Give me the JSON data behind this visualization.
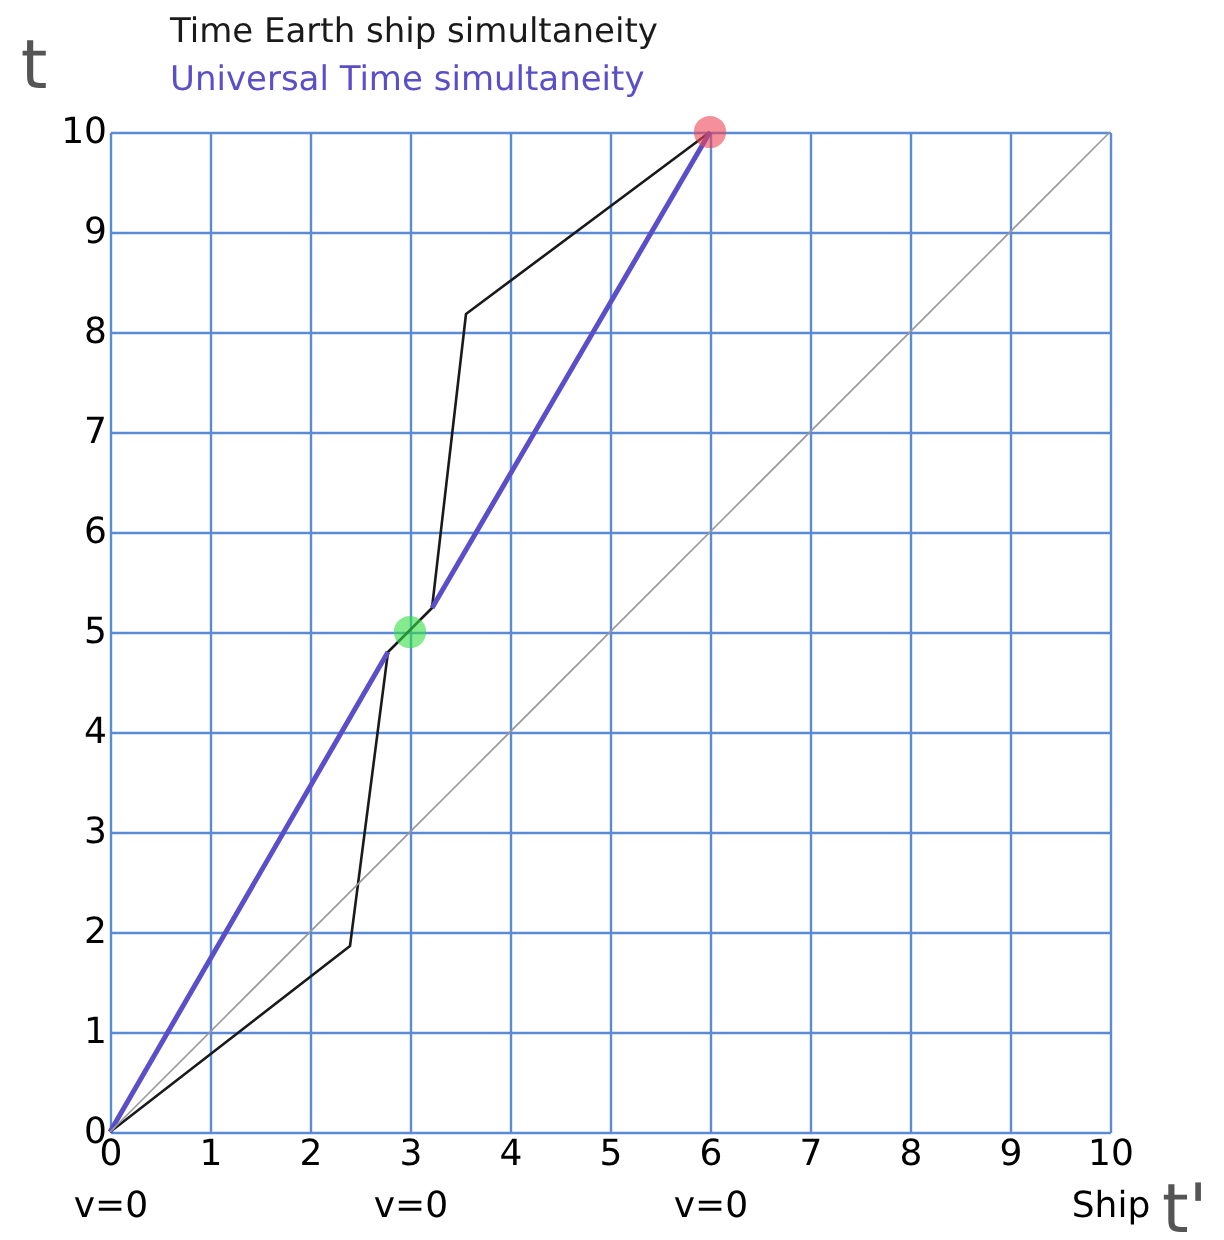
{
  "chart_data": {
    "type": "line",
    "xlabel": "t'",
    "ylabel": "t",
    "series": [
      {
        "name": "Time Earth ship simultaneity",
        "color": "#1a1a1a",
        "x": [
          0,
          2.4,
          2.78,
          3.22,
          3.56,
          6
        ],
        "values": [
          0,
          1.86,
          4.8,
          5.24,
          8.18,
          10
        ]
      },
      {
        "name": "Universal Time simultaneity",
        "color": "#5b4fc9",
        "x": [
          0,
          2.78,
          3.0,
          3.22,
          6
        ],
        "values": [
          0,
          4.8,
          null,
          5.24,
          10
        ]
      },
      {
        "type": "line",
        "color": "#999999",
        "x": [
          0,
          10
        ],
        "values": [
          0,
          10
        ]
      },
      {
        "type": "scatter",
        "color": "#33dd44",
        "x": [
          3
        ],
        "values": [
          5
        ],
        "marker": "circle"
      },
      {
        "type": "scatter",
        "color": "#ee4455",
        "x": [
          6
        ],
        "values": [
          10
        ],
        "marker": "circle"
      }
    ],
    "xlim": [
      0,
      10
    ],
    "ylim": [
      0,
      10
    ],
    "xticks": [
      {
        "value": 0,
        "label": "0\nv=0"
      },
      1,
      2,
      {
        "value": 3,
        "label": "3\nv=0"
      },
      4,
      5,
      {
        "value": 6,
        "label": "6\nv=0"
      },
      7,
      8,
      9,
      {
        "value": 10,
        "label": "10\nShip"
      }
    ],
    "yticks": [
      0,
      1,
      2,
      3,
      4,
      5,
      6,
      7,
      8,
      9,
      10
    ],
    "grid": true,
    "legend": "top left"
  }
}
